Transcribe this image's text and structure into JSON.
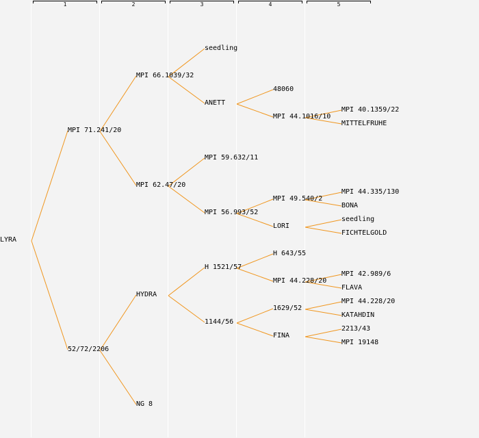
{
  "generations": [
    "1",
    "2",
    "3",
    "4",
    "5"
  ],
  "colors": {
    "line": "#f0961e",
    "background": "#f3f3f3",
    "separator": "#ffffff",
    "text": "#000000"
  },
  "tree": {
    "label": "LYRA",
    "children": [
      {
        "label": "MPI 71.241/20",
        "children": [
          {
            "label": "MPI 66.1039/32",
            "children": [
              {
                "label": "seedling",
                "children": []
              },
              {
                "label": "ANETT",
                "children": [
                  {
                    "label": "48060",
                    "children": []
                  },
                  {
                    "label": "MPI 44.1016/10",
                    "children": [
                      {
                        "label": "MPI 40.1359/22",
                        "children": []
                      },
                      {
                        "label": "MITTELFRUHE",
                        "children": []
                      }
                    ]
                  }
                ]
              }
            ]
          },
          {
            "label": "MPI 62.47/20",
            "children": [
              {
                "label": "MPI 59.632/11",
                "children": []
              },
              {
                "label": "MPI 56.993/52",
                "children": [
                  {
                    "label": "MPI 49.540/2",
                    "children": [
                      {
                        "label": "MPI 44.335/130",
                        "children": []
                      },
                      {
                        "label": "BONA",
                        "children": []
                      }
                    ]
                  },
                  {
                    "label": "LORI",
                    "children": [
                      {
                        "label": "seedling",
                        "children": []
                      },
                      {
                        "label": "FICHTELGOLD",
                        "children": []
                      }
                    ]
                  }
                ]
              }
            ]
          }
        ]
      },
      {
        "label": "52/72/2206",
        "children": [
          {
            "label": "HYDRA",
            "children": [
              {
                "label": "H 1521/57",
                "children": [
                  {
                    "label": "H 643/55",
                    "children": []
                  },
                  {
                    "label": "MPI 44.228/20",
                    "children": [
                      {
                        "label": "MPI 42.989/6",
                        "children": []
                      },
                      {
                        "label": "FLAVA",
                        "children": []
                      }
                    ]
                  }
                ]
              },
              {
                "label": "1144/56",
                "children": [
                  {
                    "label": "1629/52",
                    "children": [
                      {
                        "label": "MPI 44.228/20",
                        "children": []
                      },
                      {
                        "label": "KATAHDIN",
                        "children": []
                      }
                    ]
                  },
                  {
                    "label": "FINA",
                    "children": [
                      {
                        "label": "2213/43",
                        "children": []
                      },
                      {
                        "label": "MPI 19148",
                        "children": []
                      }
                    ]
                  }
                ]
              }
            ]
          },
          {
            "label": "NG 8",
            "children": []
          }
        ]
      }
    ]
  }
}
